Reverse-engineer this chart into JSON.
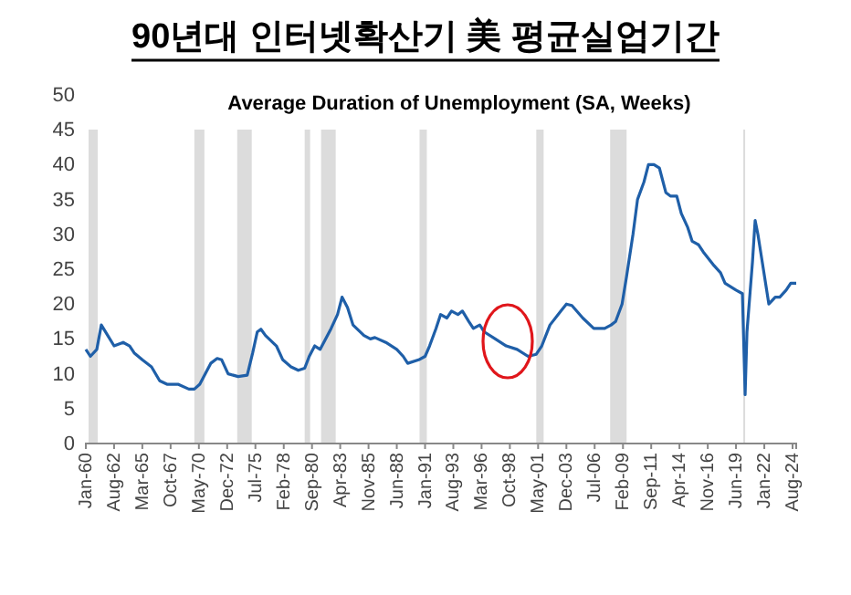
{
  "chart_data": {
    "type": "line",
    "title": "90년대 인터넷확산기 美 평균실업기간",
    "subtitle": "Average Duration of Unemployment (SA, Weeks)",
    "x": [
      "1960-01",
      "1960-06",
      "1961-01",
      "1961-06",
      "1962-01",
      "1962-08",
      "1963-06",
      "1964-01",
      "1964-06",
      "1965-03",
      "1966-01",
      "1966-10",
      "1967-06",
      "1968-06",
      "1969-06",
      "1969-12",
      "1970-06",
      "1971-06",
      "1972-01",
      "1972-06",
      "1973-01",
      "1973-12",
      "1974-10",
      "1975-04",
      "1975-09",
      "1976-01",
      "1976-06",
      "1977-06",
      "1978-01",
      "1978-10",
      "1979-06",
      "1980-01",
      "1980-06",
      "1980-12",
      "1981-06",
      "1982-06",
      "1983-01",
      "1983-06",
      "1983-12",
      "1984-06",
      "1985-06",
      "1986-01",
      "1986-06",
      "1987-06",
      "1988-06",
      "1989-01",
      "1989-06",
      "1990-06",
      "1991-01",
      "1991-06",
      "1992-01",
      "1992-06",
      "1993-01",
      "1993-06",
      "1994-01",
      "1994-06",
      "1995-01",
      "1995-06",
      "1996-01",
      "1996-06",
      "1997-06",
      "1998-06",
      "1999-06",
      "2000-06",
      "2001-03",
      "2001-09",
      "2002-06",
      "2003-06",
      "2003-12",
      "2004-06",
      "2005-06",
      "2006-06",
      "2007-06",
      "2008-01",
      "2008-06",
      "2009-01",
      "2009-06",
      "2010-01",
      "2010-06",
      "2011-01",
      "2011-06",
      "2011-12",
      "2012-06",
      "2013-01",
      "2013-06",
      "2014-01",
      "2014-06",
      "2015-01",
      "2015-06",
      "2016-01",
      "2016-06",
      "2017-06",
      "2018-01",
      "2018-06",
      "2019-06",
      "2020-01",
      "2020-04",
      "2020-06",
      "2020-12",
      "2021-03",
      "2021-06",
      "2021-12",
      "2022-06",
      "2023-01",
      "2023-06",
      "2024-01",
      "2024-06",
      "2024-12"
    ],
    "series": [
      {
        "color": "#1f5fa8",
        "values": [
          13.5,
          12.5,
          13.5,
          17,
          15.5,
          14,
          14.5,
          14,
          13,
          12,
          11,
          9,
          8.5,
          8.5,
          7.8,
          7.8,
          8.5,
          11.5,
          12.2,
          12,
          10,
          9.6,
          9.8,
          13,
          16,
          16.4,
          15.5,
          14,
          12,
          11,
          10.5,
          10.8,
          12.5,
          14,
          13.5,
          16.5,
          18.5,
          21,
          19.5,
          17,
          15.5,
          15,
          15.2,
          14.5,
          13.5,
          12.5,
          11.5,
          12,
          12.5,
          14,
          16.5,
          18.5,
          18,
          19,
          18.5,
          19,
          17.5,
          16.5,
          17,
          16,
          15,
          14,
          13.5,
          12.5,
          12.8,
          14,
          17,
          19,
          20,
          19.8,
          18,
          16.5,
          16.5,
          17,
          17.5,
          20,
          24,
          30,
          35,
          37.5,
          40,
          40,
          39.5,
          36,
          35.5,
          35.5,
          33,
          31,
          29,
          28.5,
          27.5,
          25.5,
          24.5,
          23,
          22,
          21.5,
          7,
          16,
          26,
          32,
          30,
          25,
          20,
          21,
          21,
          22,
          23,
          23
        ]
      }
    ],
    "xlim": [
      "1960-01",
      "2024-12"
    ],
    "xticks": [
      {
        "value": "1960-01",
        "label": "Jan-60"
      },
      {
        "value": "1962-08",
        "label": "Aug-62"
      },
      {
        "value": "1965-03",
        "label": "Mar-65"
      },
      {
        "value": "1967-10",
        "label": "Oct-67"
      },
      {
        "value": "1970-05",
        "label": "May-70"
      },
      {
        "value": "1972-12",
        "label": "Dec-72"
      },
      {
        "value": "1975-07",
        "label": "Jul-75"
      },
      {
        "value": "1978-02",
        "label": "Feb-78"
      },
      {
        "value": "1980-09",
        "label": "Sep-80"
      },
      {
        "value": "1983-04",
        "label": "Apr-83"
      },
      {
        "value": "1985-11",
        "label": "Nov-85"
      },
      {
        "value": "1988-06",
        "label": "Jun-88"
      },
      {
        "value": "1991-01",
        "label": "Jan-91"
      },
      {
        "value": "1993-08",
        "label": "Aug-93"
      },
      {
        "value": "1996-03",
        "label": "Mar-96"
      },
      {
        "value": "1998-10",
        "label": "Oct-98"
      },
      {
        "value": "2001-05",
        "label": "May-01"
      },
      {
        "value": "2003-12",
        "label": "Dec-03"
      },
      {
        "value": "2006-07",
        "label": "Jul-06"
      },
      {
        "value": "2009-02",
        "label": "Feb-09"
      },
      {
        "value": "2011-09",
        "label": "Sep-11"
      },
      {
        "value": "2014-04",
        "label": "Apr-14"
      },
      {
        "value": "2016-11",
        "label": "Nov-16"
      },
      {
        "value": "2019-06",
        "label": "Jun-19"
      },
      {
        "value": "2022-01",
        "label": "Jan-22"
      },
      {
        "value": "2024-08",
        "label": "Aug-24"
      }
    ],
    "ylim": [
      0,
      50
    ],
    "yticks": [
      0,
      5,
      10,
      15,
      20,
      25,
      30,
      35,
      40,
      45,
      50
    ],
    "bands": [
      {
        "axis": "x",
        "from": "1960-04",
        "to": "1961-02",
        "color": "#dcdcdc"
      },
      {
        "axis": "x",
        "from": "1969-12",
        "to": "1970-11",
        "color": "#dcdcdc"
      },
      {
        "axis": "x",
        "from": "1973-11",
        "to": "1975-03",
        "color": "#dcdcdc"
      },
      {
        "axis": "x",
        "from": "1980-01",
        "to": "1980-07",
        "color": "#dcdcdc"
      },
      {
        "axis": "x",
        "from": "1981-07",
        "to": "1982-11",
        "color": "#dcdcdc"
      },
      {
        "axis": "x",
        "from": "1990-07",
        "to": "1991-03",
        "color": "#dcdcdc"
      },
      {
        "axis": "x",
        "from": "2001-03",
        "to": "2001-11",
        "color": "#dcdcdc"
      },
      {
        "axis": "x",
        "from": "2007-12",
        "to": "2009-06",
        "color": "#dcdcdc"
      },
      {
        "axis": "x",
        "from": "2020-02",
        "to": "2020-04",
        "color": "#dcdcdc"
      }
    ],
    "grid": false
  }
}
